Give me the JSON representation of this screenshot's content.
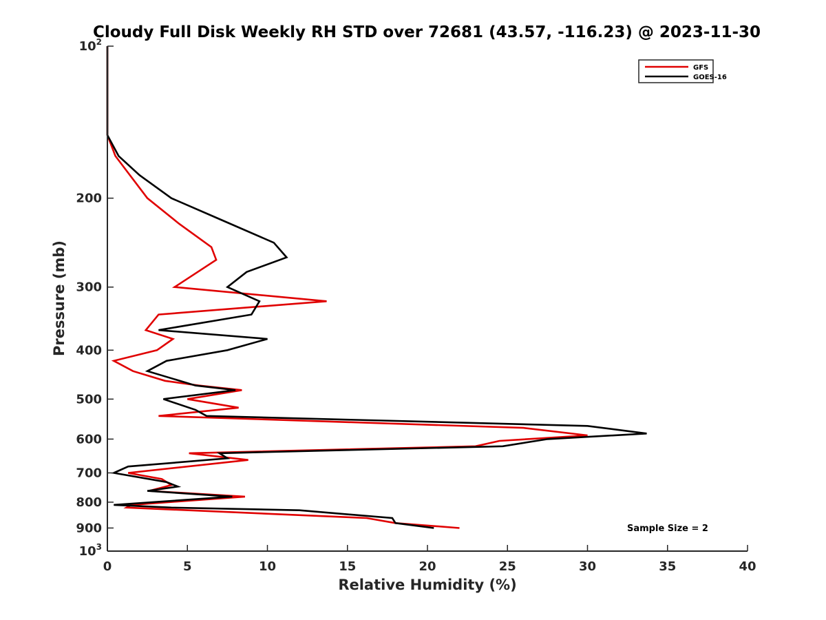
{
  "chart_data": {
    "type": "line",
    "title": "Cloudy Full Disk Weekly RH STD over 72681 (43.57, -116.23) @ 2023-11-30",
    "xlabel": "Relative Humidity (%)",
    "ylabel": "Pressure (mb)",
    "xlim": [
      0,
      40
    ],
    "ylim": [
      100,
      1000
    ],
    "y_scale": "log",
    "y_reversed": true,
    "x_ticks": [
      "0",
      "5",
      "10",
      "15",
      "20",
      "25",
      "30",
      "35",
      "40"
    ],
    "y_ticks": [
      {
        "value": 100,
        "base": "10",
        "exp": "2"
      },
      {
        "value": 200,
        "label": "200"
      },
      {
        "value": 300,
        "label": "300"
      },
      {
        "value": 400,
        "label": "400"
      },
      {
        "value": 500,
        "label": "500"
      },
      {
        "value": 600,
        "label": "600"
      },
      {
        "value": 700,
        "label": "700"
      },
      {
        "value": 800,
        "label": "800"
      },
      {
        "value": 900,
        "label": "900"
      },
      {
        "value": 1000,
        "base": "10",
        "exp": "3"
      }
    ],
    "legend_position": "top-right",
    "grid": false,
    "series": [
      {
        "name": "GFS",
        "color": "#e00000",
        "points": [
          [
            0.0,
            100
          ],
          [
            0.0,
            125
          ],
          [
            0.0,
            150
          ],
          [
            0.5,
            165
          ],
          [
            1.4,
            180
          ],
          [
            2.5,
            200
          ],
          [
            4.5,
            225
          ],
          [
            6.5,
            250
          ],
          [
            6.8,
            265
          ],
          [
            4.2,
            300
          ],
          [
            13.7,
            320
          ],
          [
            3.2,
            340
          ],
          [
            2.4,
            365
          ],
          [
            4.1,
            380
          ],
          [
            3.1,
            400
          ],
          [
            0.4,
            420
          ],
          [
            1.6,
            440
          ],
          [
            3.6,
            460
          ],
          [
            5.7,
            470
          ],
          [
            8.4,
            480
          ],
          [
            5.0,
            500
          ],
          [
            8.2,
            520
          ],
          [
            3.2,
            540
          ],
          [
            26.0,
            570
          ],
          [
            30.0,
            590
          ],
          [
            24.5,
            605
          ],
          [
            23.0,
            620
          ],
          [
            5.1,
            640
          ],
          [
            8.8,
            660
          ],
          [
            1.3,
            700
          ],
          [
            3.4,
            720
          ],
          [
            4.0,
            740
          ],
          [
            2.6,
            760
          ],
          [
            8.6,
            780
          ],
          [
            1.5,
            810
          ],
          [
            1.2,
            820
          ],
          [
            16.2,
            860
          ],
          [
            18.0,
            880
          ],
          [
            22.0,
            900
          ]
        ]
      },
      {
        "name": "GOES-16",
        "color": "#000000",
        "points": [
          [
            0.0,
            100
          ],
          [
            0.0,
            125
          ],
          [
            0.0,
            150
          ],
          [
            0.7,
            165
          ],
          [
            2.0,
            180
          ],
          [
            4.0,
            200
          ],
          [
            7.0,
            220
          ],
          [
            10.4,
            245
          ],
          [
            11.2,
            262
          ],
          [
            8.7,
            280
          ],
          [
            7.5,
            300
          ],
          [
            9.5,
            320
          ],
          [
            9.0,
            340
          ],
          [
            3.2,
            365
          ],
          [
            10.0,
            380
          ],
          [
            7.5,
            400
          ],
          [
            3.7,
            420
          ],
          [
            2.5,
            440
          ],
          [
            5.5,
            470
          ],
          [
            8.0,
            480
          ],
          [
            3.5,
            500
          ],
          [
            5.5,
            525
          ],
          [
            6.2,
            540
          ],
          [
            30.0,
            565
          ],
          [
            33.7,
            585
          ],
          [
            27.5,
            600
          ],
          [
            24.7,
            620
          ],
          [
            7.0,
            640
          ],
          [
            7.5,
            655
          ],
          [
            1.3,
            680
          ],
          [
            0.4,
            700
          ],
          [
            3.7,
            730
          ],
          [
            4.4,
            745
          ],
          [
            2.5,
            760
          ],
          [
            7.8,
            780
          ],
          [
            0.4,
            810
          ],
          [
            4.0,
            820
          ],
          [
            12.0,
            830
          ],
          [
            17.8,
            860
          ],
          [
            18.0,
            880
          ],
          [
            20.4,
            900
          ]
        ]
      }
    ],
    "annotations": [
      {
        "text": "Sample Size = 2",
        "x": 33,
        "y": 900
      }
    ]
  }
}
